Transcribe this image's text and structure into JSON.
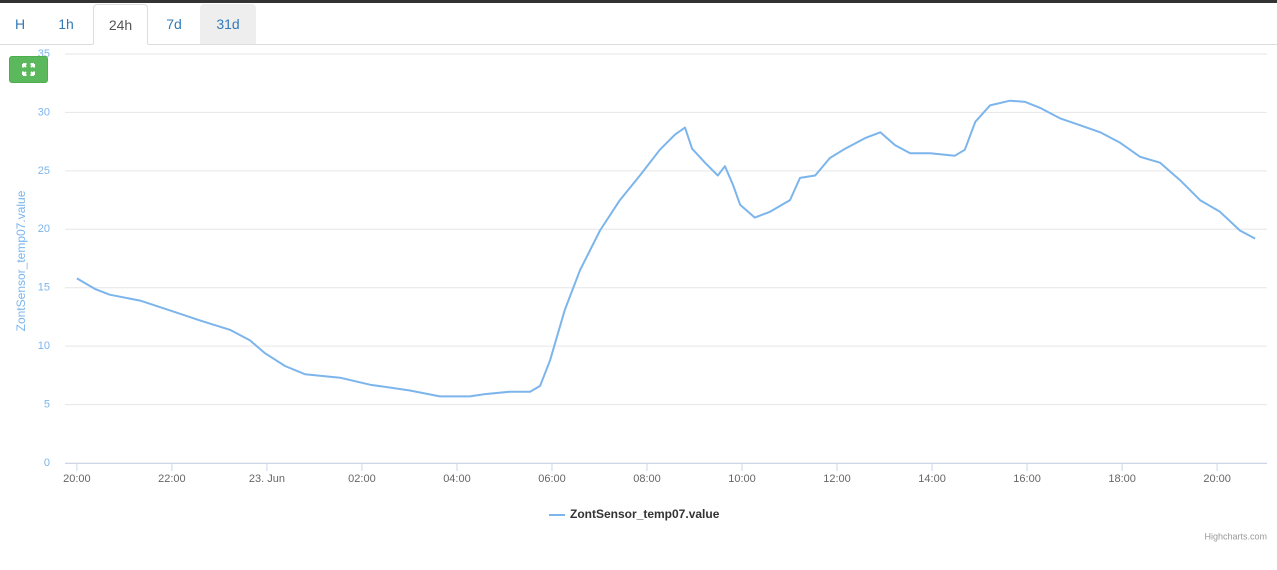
{
  "tabs": [
    "H",
    "1h",
    "24h",
    "7d",
    "31d"
  ],
  "chart_data": {
    "type": "line",
    "y_axis_title": "ZontSensor_temp07.value",
    "series": [
      {
        "name": "ZontSensor_temp07.value",
        "color": "#7cb5ec",
        "x": [
          0,
          0.38,
          0.69,
          1.33,
          2,
          2.59,
          3.22,
          3.64,
          3.96,
          4.38,
          4.8,
          5.54,
          6.17,
          7.01,
          7.64,
          8.27,
          8.59,
          9.12,
          9.54,
          9.75,
          9.96,
          10.27,
          10.59,
          11.01,
          11.43,
          11.85,
          12.27,
          12.59,
          12.8,
          12.95,
          13.22,
          13.49,
          13.64,
          13.81,
          13.96,
          14.27,
          14.59,
          15.01,
          15.22,
          15.54,
          15.85,
          16.17,
          16.59,
          16.91,
          17.22,
          17.54,
          17.96,
          18.48,
          18.69,
          18.91,
          19.22,
          19.64,
          19.96,
          20.27,
          20.69,
          21.12,
          21.54,
          21.96,
          22.38,
          22.8,
          23.22,
          23.64,
          24.06,
          24.48,
          24.8
        ],
        "values": [
          15.8,
          14.9,
          14.4,
          13.9,
          13.0,
          12.2,
          11.4,
          10.5,
          9.4,
          8.3,
          7.6,
          7.3,
          6.7,
          6.2,
          5.7,
          5.7,
          5.9,
          6.1,
          6.1,
          6.6,
          8.8,
          13.1,
          16.5,
          19.9,
          22.5,
          24.6,
          26.8,
          28.1,
          28.7,
          26.9,
          25.7,
          24.6,
          25.4,
          23.8,
          22.1,
          21.0,
          21.5,
          22.5,
          24.4,
          24.6,
          26.1,
          26.9,
          27.8,
          28.3,
          27.2,
          26.5,
          26.5,
          26.3,
          26.8,
          29.2,
          30.6,
          31.0,
          30.9,
          30.4,
          29.5,
          28.9,
          28.3,
          27.4,
          26.2,
          25.7,
          24.2,
          22.5,
          21.5,
          19.9,
          19.2
        ]
      }
    ],
    "xlim": [
      -0.25,
      25.05
    ],
    "xticks": [
      {
        "value": 0,
        "label": "20:00"
      },
      {
        "value": 2,
        "label": "22:00"
      },
      {
        "value": 4,
        "label": "23. Jun"
      },
      {
        "value": 6,
        "label": "02:00"
      },
      {
        "value": 8,
        "label": "04:00"
      },
      {
        "value": 10,
        "label": "06:00"
      },
      {
        "value": 12,
        "label": "08:00"
      },
      {
        "value": 14,
        "label": "10:00"
      },
      {
        "value": 16,
        "label": "12:00"
      },
      {
        "value": 18,
        "label": "14:00"
      },
      {
        "value": 20,
        "label": "16:00"
      },
      {
        "value": 22,
        "label": "18:00"
      },
      {
        "value": 24,
        "label": "20:00"
      }
    ],
    "ylim": [
      0,
      35
    ],
    "yticks": [
      0,
      5,
      10,
      15,
      20,
      25,
      30,
      35
    ],
    "grid": true,
    "legend": "bottom",
    "credits": "Highcharts.com"
  }
}
